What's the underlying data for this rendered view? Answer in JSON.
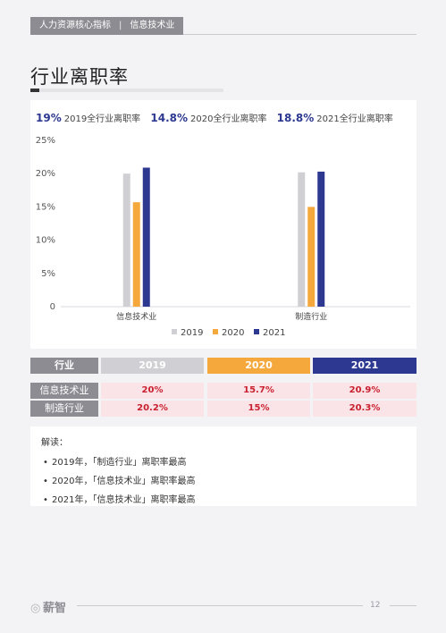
{
  "header": {
    "section": "人力资源核心指标",
    "subsection": "信息技术业"
  },
  "page_title": "行业离职率",
  "summary": [
    {
      "value": "19%",
      "label": "2019全行业离职率"
    },
    {
      "value": "14.8%",
      "label": "2020全行业离职率"
    },
    {
      "value": "18.8%",
      "label": "2021全行业离职率"
    }
  ],
  "colors": {
    "series_2019": "#d0d0d4",
    "series_2020": "#f5a83c",
    "series_2021": "#2d3991",
    "label_bg": "#8c8c92",
    "value_bg": "#fbe4e7",
    "value_text": "#c8202f"
  },
  "chart_data": {
    "type": "bar",
    "categories": [
      "信息技术业",
      "制造行业"
    ],
    "series": [
      {
        "name": "2019",
        "values": [
          20,
          20.2
        ]
      },
      {
        "name": "2020",
        "values": [
          15.7,
          15
        ]
      },
      {
        "name": "2021",
        "values": [
          20.9,
          20.3
        ]
      }
    ],
    "yticks": [
      "0",
      "5%",
      "10%",
      "15%",
      "20%",
      "25%"
    ],
    "ylim": [
      0,
      25
    ],
    "grid": false,
    "legend": "bottom"
  },
  "table": {
    "headers": [
      "行业",
      "2019",
      "2020",
      "2021"
    ],
    "rows": [
      {
        "label": "信息技术业",
        "values": [
          "20%",
          "15.7%",
          "20.9%"
        ]
      },
      {
        "label": "制造行业",
        "values": [
          "20.2%",
          "15%",
          "20.3%"
        ]
      }
    ]
  },
  "notes": {
    "head": "解读：",
    "items": [
      "2019年，「制造行业」离职率最高",
      "2020年，「信息技术业」离职率最高",
      "2021年，「信息技术业」离职率最高"
    ]
  },
  "footer": {
    "logo": "薪智",
    "page": "12"
  }
}
